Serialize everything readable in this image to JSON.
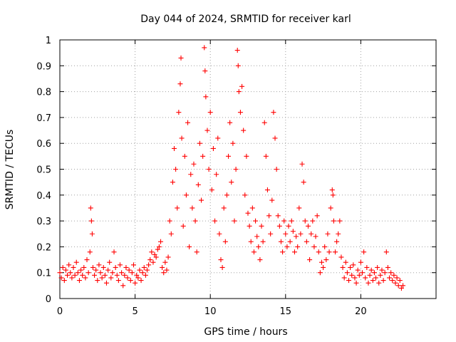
{
  "chart_data": {
    "type": "scatter",
    "title": "Day 044 of 2024, SRMTID for receiver karl",
    "xlabel": "GPS time / hours",
    "ylabel": "SRMTID / TECUs",
    "xlim": [
      0,
      25
    ],
    "ylim": [
      0,
      1
    ],
    "x_ticks": [
      0,
      5,
      10,
      15,
      20
    ],
    "y_ticks": [
      0,
      0.1,
      0.2,
      0.3,
      0.4,
      0.5,
      0.6,
      0.7,
      0.8,
      0.9,
      1
    ],
    "grid": true,
    "marker": "+",
    "color": "#ff0000",
    "series": [
      {
        "name": "SRMTID",
        "points": [
          [
            0.0,
            0.1
          ],
          [
            0.1,
            0.08
          ],
          [
            0.2,
            0.12
          ],
          [
            0.3,
            0.07
          ],
          [
            0.4,
            0.11
          ],
          [
            0.5,
            0.09
          ],
          [
            0.6,
            0.13
          ],
          [
            0.7,
            0.1
          ],
          [
            0.8,
            0.08
          ],
          [
            0.9,
            0.12
          ],
          [
            1.0,
            0.09
          ],
          [
            1.1,
            0.14
          ],
          [
            1.2,
            0.1
          ],
          [
            1.3,
            0.07
          ],
          [
            1.4,
            0.11
          ],
          [
            1.5,
            0.09
          ],
          [
            1.6,
            0.12
          ],
          [
            1.7,
            0.08
          ],
          [
            1.8,
            0.15
          ],
          [
            1.9,
            0.1
          ],
          [
            2.0,
            0.18
          ],
          [
            2.05,
            0.35
          ],
          [
            2.1,
            0.3
          ],
          [
            2.15,
            0.25
          ],
          [
            2.2,
            0.12
          ],
          [
            2.3,
            0.09
          ],
          [
            2.4,
            0.11
          ],
          [
            2.5,
            0.07
          ],
          [
            2.6,
            0.13
          ],
          [
            2.7,
            0.1
          ],
          [
            2.8,
            0.08
          ],
          [
            2.9,
            0.12
          ],
          [
            3.0,
            0.09
          ],
          [
            3.1,
            0.06
          ],
          [
            3.2,
            0.11
          ],
          [
            3.3,
            0.14
          ],
          [
            3.4,
            0.08
          ],
          [
            3.5,
            0.1
          ],
          [
            3.6,
            0.18
          ],
          [
            3.7,
            0.12
          ],
          [
            3.8,
            0.09
          ],
          [
            3.9,
            0.07
          ],
          [
            4.0,
            0.13
          ],
          [
            4.1,
            0.1
          ],
          [
            4.2,
            0.05
          ],
          [
            4.3,
            0.09
          ],
          [
            4.4,
            0.12
          ],
          [
            4.5,
            0.08
          ],
          [
            4.6,
            0.11
          ],
          [
            4.7,
            0.07
          ],
          [
            4.8,
            0.1
          ],
          [
            4.9,
            0.13
          ],
          [
            5.0,
            0.06
          ],
          [
            5.1,
            0.09
          ],
          [
            5.2,
            0.08
          ],
          [
            5.3,
            0.11
          ],
          [
            5.4,
            0.07
          ],
          [
            5.5,
            0.1
          ],
          [
            5.6,
            0.12
          ],
          [
            5.7,
            0.09
          ],
          [
            5.8,
            0.11
          ],
          [
            5.9,
            0.13
          ],
          [
            6.0,
            0.15
          ],
          [
            6.1,
            0.18
          ],
          [
            6.2,
            0.14
          ],
          [
            6.3,
            0.17
          ],
          [
            6.4,
            0.16
          ],
          [
            6.5,
            0.19
          ],
          [
            6.6,
            0.2
          ],
          [
            6.7,
            0.22
          ],
          [
            6.8,
            0.12
          ],
          [
            6.9,
            0.1
          ],
          [
            7.0,
            0.14
          ],
          [
            7.1,
            0.11
          ],
          [
            7.2,
            0.16
          ],
          [
            7.3,
            0.3
          ],
          [
            7.4,
            0.25
          ],
          [
            7.5,
            0.45
          ],
          [
            7.6,
            0.58
          ],
          [
            7.7,
            0.5
          ],
          [
            7.8,
            0.35
          ],
          [
            7.9,
            0.72
          ],
          [
            8.0,
            0.83
          ],
          [
            8.05,
            0.93
          ],
          [
            8.1,
            0.62
          ],
          [
            8.2,
            0.28
          ],
          [
            8.3,
            0.55
          ],
          [
            8.4,
            0.4
          ],
          [
            8.5,
            0.68
          ],
          [
            8.6,
            0.2
          ],
          [
            8.7,
            0.48
          ],
          [
            8.8,
            0.35
          ],
          [
            8.9,
            0.52
          ],
          [
            9.0,
            0.3
          ],
          [
            9.1,
            0.18
          ],
          [
            9.2,
            0.44
          ],
          [
            9.3,
            0.6
          ],
          [
            9.4,
            0.38
          ],
          [
            9.5,
            0.55
          ],
          [
            9.6,
            0.97
          ],
          [
            9.65,
            0.88
          ],
          [
            9.7,
            0.78
          ],
          [
            9.8,
            0.65
          ],
          [
            9.9,
            0.5
          ],
          [
            10.0,
            0.72
          ],
          [
            10.1,
            0.42
          ],
          [
            10.2,
            0.58
          ],
          [
            10.3,
            0.3
          ],
          [
            10.4,
            0.48
          ],
          [
            10.5,
            0.62
          ],
          [
            10.6,
            0.25
          ],
          [
            10.7,
            0.15
          ],
          [
            10.8,
            0.12
          ],
          [
            10.9,
            0.35
          ],
          [
            11.0,
            0.22
          ],
          [
            11.1,
            0.4
          ],
          [
            11.2,
            0.55
          ],
          [
            11.3,
            0.68
          ],
          [
            11.4,
            0.45
          ],
          [
            11.5,
            0.6
          ],
          [
            11.6,
            0.3
          ],
          [
            11.7,
            0.5
          ],
          [
            11.8,
            0.96
          ],
          [
            11.85,
            0.9
          ],
          [
            11.9,
            0.8
          ],
          [
            12.0,
            0.72
          ],
          [
            12.1,
            0.82
          ],
          [
            12.2,
            0.65
          ],
          [
            12.3,
            0.4
          ],
          [
            12.4,
            0.55
          ],
          [
            12.5,
            0.33
          ],
          [
            12.6,
            0.28
          ],
          [
            12.7,
            0.22
          ],
          [
            12.8,
            0.35
          ],
          [
            12.9,
            0.18
          ],
          [
            13.0,
            0.3
          ],
          [
            13.1,
            0.24
          ],
          [
            13.2,
            0.2
          ],
          [
            13.3,
            0.15
          ],
          [
            13.4,
            0.28
          ],
          [
            13.5,
            0.22
          ],
          [
            13.6,
            0.68
          ],
          [
            13.7,
            0.55
          ],
          [
            13.8,
            0.42
          ],
          [
            13.9,
            0.32
          ],
          [
            14.0,
            0.25
          ],
          [
            14.1,
            0.38
          ],
          [
            14.2,
            0.72
          ],
          [
            14.3,
            0.62
          ],
          [
            14.4,
            0.5
          ],
          [
            14.5,
            0.32
          ],
          [
            14.6,
            0.28
          ],
          [
            14.7,
            0.22
          ],
          [
            14.8,
            0.18
          ],
          [
            14.9,
            0.3
          ],
          [
            15.0,
            0.25
          ],
          [
            15.1,
            0.2
          ],
          [
            15.2,
            0.28
          ],
          [
            15.3,
            0.22
          ],
          [
            15.4,
            0.3
          ],
          [
            15.5,
            0.26
          ],
          [
            15.6,
            0.18
          ],
          [
            15.7,
            0.24
          ],
          [
            15.8,
            0.2
          ],
          [
            15.9,
            0.35
          ],
          [
            16.0,
            0.25
          ],
          [
            16.1,
            0.52
          ],
          [
            16.2,
            0.45
          ],
          [
            16.3,
            0.3
          ],
          [
            16.4,
            0.22
          ],
          [
            16.5,
            0.28
          ],
          [
            16.6,
            0.15
          ],
          [
            16.7,
            0.25
          ],
          [
            16.8,
            0.3
          ],
          [
            16.9,
            0.2
          ],
          [
            17.0,
            0.24
          ],
          [
            17.1,
            0.32
          ],
          [
            17.2,
            0.18
          ],
          [
            17.3,
            0.1
          ],
          [
            17.4,
            0.14
          ],
          [
            17.5,
            0.12
          ],
          [
            17.6,
            0.2
          ],
          [
            17.7,
            0.15
          ],
          [
            17.8,
            0.25
          ],
          [
            17.9,
            0.18
          ],
          [
            18.0,
            0.35
          ],
          [
            18.1,
            0.42
          ],
          [
            18.15,
            0.4
          ],
          [
            18.2,
            0.3
          ],
          [
            18.3,
            0.18
          ],
          [
            18.4,
            0.22
          ],
          [
            18.5,
            0.25
          ],
          [
            18.6,
            0.3
          ],
          [
            18.7,
            0.16
          ],
          [
            18.8,
            0.12
          ],
          [
            18.9,
            0.08
          ],
          [
            19.0,
            0.14
          ],
          [
            19.1,
            0.1
          ],
          [
            19.2,
            0.07
          ],
          [
            19.3,
            0.12
          ],
          [
            19.4,
            0.09
          ],
          [
            19.5,
            0.13
          ],
          [
            19.6,
            0.08
          ],
          [
            19.7,
            0.06
          ],
          [
            19.8,
            0.11
          ],
          [
            19.9,
            0.09
          ],
          [
            20.0,
            0.14
          ],
          [
            20.1,
            0.1
          ],
          [
            20.2,
            0.18
          ],
          [
            20.3,
            0.08
          ],
          [
            20.4,
            0.12
          ],
          [
            20.5,
            0.06
          ],
          [
            20.6,
            0.09
          ],
          [
            20.7,
            0.11
          ],
          [
            20.8,
            0.07
          ],
          [
            20.9,
            0.1
          ],
          [
            21.0,
            0.08
          ],
          [
            21.1,
            0.12
          ],
          [
            21.2,
            0.06
          ],
          [
            21.3,
            0.09
          ],
          [
            21.4,
            0.11
          ],
          [
            21.5,
            0.07
          ],
          [
            21.6,
            0.1
          ],
          [
            21.7,
            0.18
          ],
          [
            21.8,
            0.12
          ],
          [
            21.9,
            0.08
          ],
          [
            22.0,
            0.1
          ],
          [
            22.1,
            0.07
          ],
          [
            22.2,
            0.09
          ],
          [
            22.3,
            0.06
          ],
          [
            22.4,
            0.08
          ],
          [
            22.5,
            0.05
          ],
          [
            22.6,
            0.07
          ],
          [
            22.7,
            0.04
          ],
          [
            22.8,
            0.05
          ]
        ]
      }
    ]
  }
}
